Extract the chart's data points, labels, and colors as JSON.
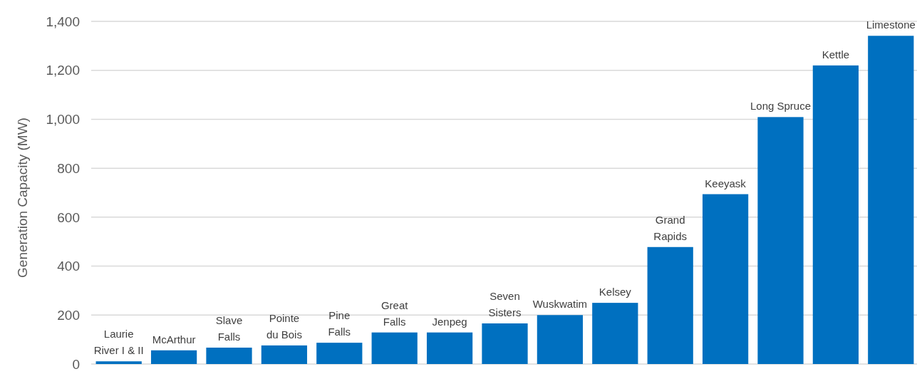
{
  "chart_data": {
    "type": "bar",
    "ylabel": "Generation Capacity (MW)",
    "categories": [
      "Laurie\nRiver I & II",
      "McArthur",
      "Slave\nFalls",
      "Pointe\ndu Bois",
      "Pine\nFalls",
      "Great\nFalls",
      "Jenpeg",
      "Seven\nSisters",
      "Wuskwatim",
      "Kelsey",
      "Grand\nRapids",
      "Keeyask",
      "Long Spruce",
      "Kettle",
      "Limestone"
    ],
    "values": [
      11,
      56,
      67,
      76,
      87,
      129,
      129,
      166,
      200,
      250,
      478,
      694,
      1009,
      1220,
      1341
    ],
    "color": "#0070c0",
    "ylim": [
      0,
      1400
    ],
    "yticks": [
      0,
      200,
      400,
      600,
      800,
      {
        "value": 1000,
        "label": "1,000"
      },
      {
        "value": 1200,
        "label": "1,200"
      },
      {
        "value": 1400,
        "label": "1,400"
      }
    ],
    "grid": "y"
  }
}
